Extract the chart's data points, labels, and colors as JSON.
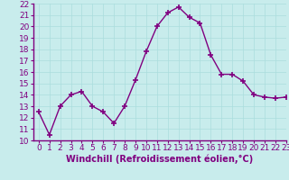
{
  "x": [
    0,
    1,
    2,
    3,
    4,
    5,
    6,
    7,
    8,
    9,
    10,
    11,
    12,
    13,
    14,
    15,
    16,
    17,
    18,
    19,
    20,
    21,
    22,
    23
  ],
  "y": [
    12.5,
    10.5,
    13.0,
    14.0,
    14.3,
    13.0,
    12.5,
    11.5,
    13.0,
    15.3,
    17.8,
    20.0,
    21.2,
    21.7,
    20.8,
    20.3,
    17.5,
    15.8,
    15.8,
    15.2,
    14.0,
    13.8,
    13.7,
    13.8
  ],
  "line_color": "#800080",
  "marker": "+",
  "marker_size": 4,
  "linewidth": 1.0,
  "xlabel": "Windchill (Refroidissement éolien,°C)",
  "ylim": [
    10,
    22
  ],
  "xlim": [
    -0.5,
    23
  ],
  "yticks": [
    10,
    11,
    12,
    13,
    14,
    15,
    16,
    17,
    18,
    19,
    20,
    21,
    22
  ],
  "xticks": [
    0,
    1,
    2,
    3,
    4,
    5,
    6,
    7,
    8,
    9,
    10,
    11,
    12,
    13,
    14,
    15,
    16,
    17,
    18,
    19,
    20,
    21,
    22,
    23
  ],
  "bg_color": "#c8ecec",
  "grid_color": "#aadddd",
  "tick_color": "#800080",
  "label_color": "#800080",
  "xlabel_fontsize": 7,
  "tick_fontsize": 6.5
}
